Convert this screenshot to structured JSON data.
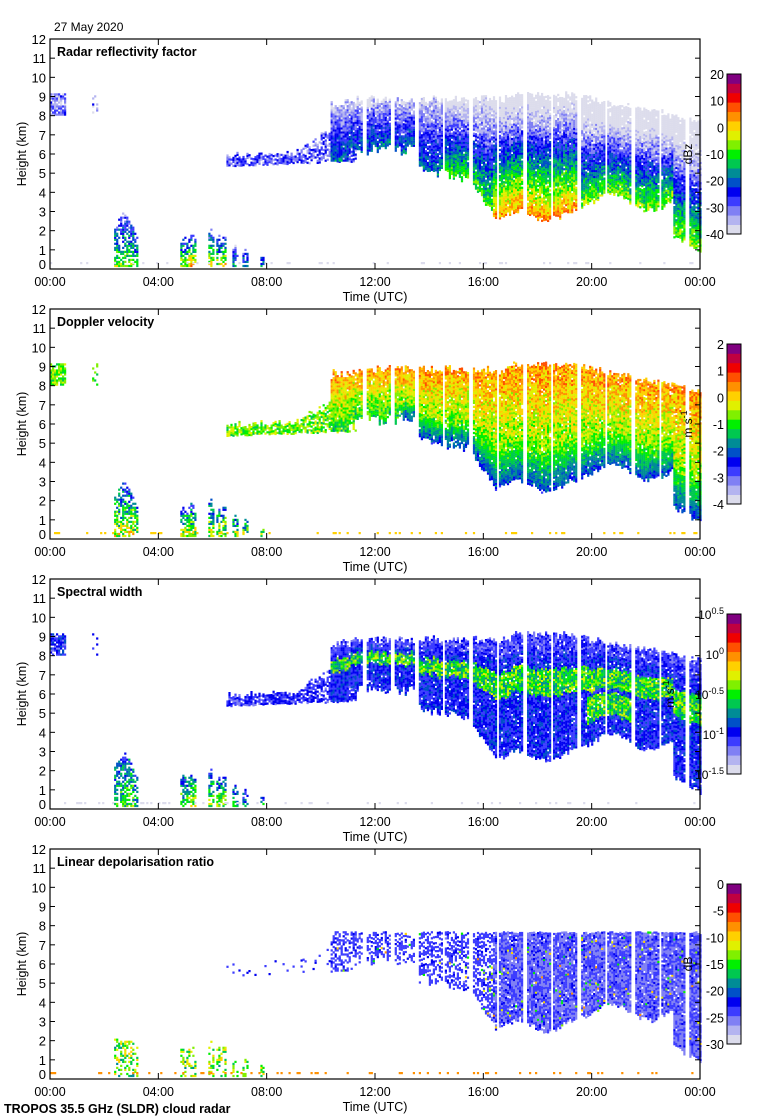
{
  "header": {
    "date": "27 May 2020",
    "footer": "TROPOS 35.5 GHz (SLDR) cloud radar"
  },
  "chart_data": [
    {
      "type": "heatmap",
      "title": "Radar reflectivity factor",
      "xlabel": "Time (UTC)",
      "ylabel": "Height (km)",
      "x_ticks": [
        "00:00",
        "04:00",
        "08:00",
        "12:00",
        "16:00",
        "20:00",
        "00:00"
      ],
      "xlim_hours": [
        0,
        24
      ],
      "y_ticks": [
        "0",
        "1",
        "2",
        "3",
        "4",
        "5",
        "6",
        "7",
        "8",
        "9",
        "10",
        "11",
        "12"
      ],
      "ylim": [
        0,
        12
      ],
      "colorbar": {
        "label": "dBz",
        "ticks": [
          "20",
          "10",
          "0",
          "-10",
          "-20",
          "-30",
          "-40"
        ],
        "range": [
          -40,
          20
        ]
      },
      "colormap_key": "z"
    },
    {
      "type": "heatmap",
      "title": "Doppler velocity",
      "xlabel": "Time (UTC)",
      "ylabel": "Height (km)",
      "x_ticks": [
        "00:00",
        "04:00",
        "08:00",
        "12:00",
        "16:00",
        "20:00",
        "00:00"
      ],
      "xlim_hours": [
        0,
        24
      ],
      "y_ticks": [
        "0",
        "1",
        "2",
        "3",
        "4",
        "5",
        "6",
        "7",
        "8",
        "9",
        "10",
        "11",
        "12"
      ],
      "ylim": [
        0,
        12
      ],
      "colorbar": {
        "label": "m s-1",
        "label_main": "m s",
        "label_sup": "-1",
        "ticks": [
          "2",
          "1",
          "0",
          "-1",
          "-2",
          "-3",
          "-4"
        ],
        "range": [
          -4,
          2
        ]
      },
      "colormap_key": "v"
    },
    {
      "type": "heatmap",
      "title": "Spectral width",
      "xlabel": "Time (UTC)",
      "ylabel": "Height (km)",
      "x_ticks": [
        "00:00",
        "04:00",
        "08:00",
        "12:00",
        "16:00",
        "20:00",
        "00:00"
      ],
      "xlim_hours": [
        0,
        24
      ],
      "y_ticks": [
        "0",
        "1",
        "2",
        "3",
        "4",
        "5",
        "6",
        "7",
        "8",
        "9",
        "10",
        "11",
        "12"
      ],
      "ylim": [
        0,
        12
      ],
      "colorbar": {
        "label": "m s-1",
        "label_main": "m s",
        "label_sup": "-1",
        "ticks": [
          "10^0.5",
          "10^0",
          "10^-0.5",
          "10^-1",
          "10^-1.5"
        ],
        "tick_base": [
          "10",
          "10",
          "10",
          "10",
          "10"
        ],
        "tick_exp": [
          "0.5",
          "0",
          "-0.5",
          "-1",
          "-1.5"
        ],
        "range": [
          -1.5,
          0.5
        ]
      },
      "colormap_key": "w"
    },
    {
      "type": "heatmap",
      "title": "Linear depolarisation ratio",
      "xlabel": "Time (UTC)",
      "ylabel": "Height (km)",
      "x_ticks": [
        "00:00",
        "04:00",
        "08:00",
        "12:00",
        "16:00",
        "20:00",
        "00:00"
      ],
      "xlim_hours": [
        0,
        24
      ],
      "y_ticks": [
        "0",
        "1",
        "2",
        "3",
        "4",
        "5",
        "6",
        "7",
        "8",
        "9",
        "10",
        "11",
        "12"
      ],
      "ylim": [
        0,
        12
      ],
      "colorbar": {
        "label": "dB",
        "ticks": [
          "0",
          "-5",
          "-10",
          "-15",
          "-20",
          "-25",
          "-30"
        ],
        "range": [
          -30,
          0
        ]
      },
      "colormap_key": "l"
    }
  ],
  "colors": {
    "colormap": [
      "#dcdcec",
      "#b4b4f0",
      "#8080f4",
      "#3c3cff",
      "#0000f0",
      "#0050c8",
      "#008c96",
      "#00c850",
      "#00f000",
      "#80f000",
      "#e0f000",
      "#ffd000",
      "#ff9000",
      "#ff5000",
      "#f00000",
      "#c00040",
      "#800080"
    ]
  }
}
